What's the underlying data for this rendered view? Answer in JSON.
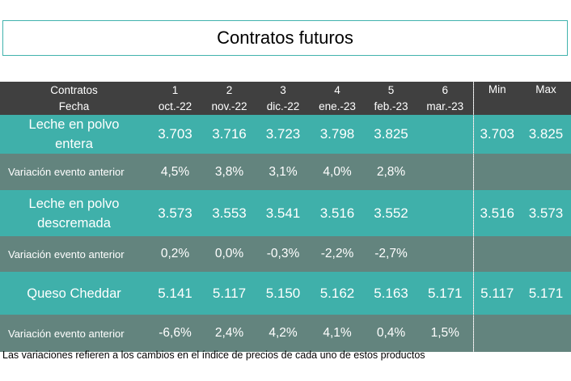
{
  "title": "Contratos futuros",
  "header": {
    "label_top": "Contratos",
    "label_bottom": "Fecha",
    "columns": [
      {
        "num": "1",
        "date": "oct.-22"
      },
      {
        "num": "2",
        "date": "nov.-22"
      },
      {
        "num": "3",
        "date": "dic.-22"
      },
      {
        "num": "4",
        "date": "ene.-23"
      },
      {
        "num": "5",
        "date": "feb.-23"
      },
      {
        "num": "6",
        "date": "mar.-23"
      }
    ],
    "min": "Min",
    "max": "Max"
  },
  "rows": {
    "milk": {
      "name_line1": "Leche en polvo",
      "name_line2": "entera",
      "values": [
        "3.703",
        "3.716",
        "3.723",
        "3.798",
        "3.825",
        ""
      ],
      "min": "3.703",
      "max": "3.825"
    },
    "milk_var": {
      "name": "Variación evento anterior",
      "values": [
        "4,5%",
        "3,8%",
        "3,1%",
        "4,0%",
        "2,8%",
        ""
      ]
    },
    "skim": {
      "name_line1": "Leche en polvo",
      "name_line2": "descremada",
      "values": [
        "3.573",
        "3.553",
        "3.541",
        "3.516",
        "3.552",
        ""
      ],
      "min": "3.516",
      "max": "3.573"
    },
    "skim_var": {
      "name": "Variación evento anterior",
      "values": [
        "0,2%",
        "0,0%",
        "-0,3%",
        "-2,2%",
        "-2,7%",
        ""
      ]
    },
    "cheese": {
      "name": "Queso Cheddar",
      "values": [
        "5.141",
        "5.117",
        "5.150",
        "5.162",
        "5.163",
        "5.171"
      ],
      "min": "5.117",
      "max": "5.171"
    },
    "cheese_var": {
      "name": "Variación evento anterior",
      "values": [
        "-6,6%",
        "2,4%",
        "4,2%",
        "4,1%",
        "0,4%",
        "1,5%"
      ]
    }
  },
  "footnote": "Las variaciones refieren a los cambios en el índice de precios de cada uno de estos productos",
  "colors": {
    "header_bg": "#404040",
    "product_row_bg": "#3fb0aa",
    "variation_row_bg": "#63847e",
    "title_border": "#41b3ad"
  }
}
